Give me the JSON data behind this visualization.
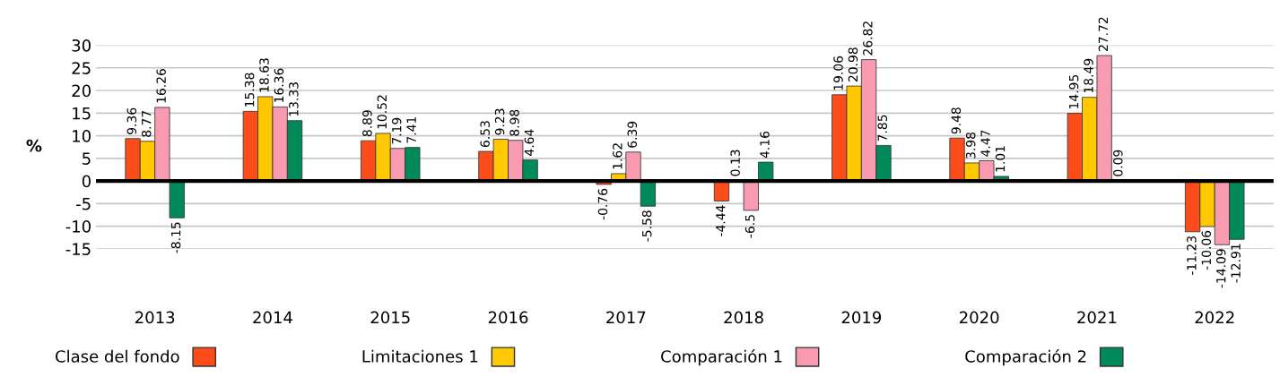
{
  "chart_data": {
    "type": "bar",
    "ylabel": "%",
    "categories": [
      "2013",
      "2014",
      "2015",
      "2016",
      "2017",
      "2018",
      "2019",
      "2020",
      "2021",
      "2022"
    ],
    "series": [
      {
        "name": "Clase del fondo",
        "color": "#fc4c1a",
        "values": [
          9.36,
          15.38,
          8.89,
          6.53,
          -0.76,
          -4.44,
          19.06,
          9.48,
          14.95,
          -11.23
        ]
      },
      {
        "name": "Limitaciones 1",
        "color": "#ffc800",
        "values": [
          8.77,
          18.63,
          10.52,
          9.23,
          1.62,
          0.13,
          20.98,
          3.98,
          18.49,
          -10.06
        ]
      },
      {
        "name": "Comparación 1",
        "color": "#f89bb0",
        "values": [
          16.26,
          16.36,
          7.19,
          8.98,
          6.39,
          -6.5,
          26.82,
          4.47,
          27.72,
          -14.09
        ]
      },
      {
        "name": "Comparación 2",
        "color": "#008a5a",
        "values": [
          -8.15,
          13.33,
          7.41,
          4.64,
          -5.58,
          4.16,
          7.85,
          1.01,
          0.09,
          -12.91
        ]
      }
    ],
    "ylim": [
      -15,
      30
    ],
    "yticks": [
      -15,
      -10,
      -5,
      0,
      5,
      10,
      15,
      20,
      25,
      30
    ],
    "ref_lines": [
      {
        "axis": "y",
        "value": 0,
        "color": "#000000"
      }
    ],
    "grid": "y",
    "legend": "bottom",
    "data_labels": true
  }
}
